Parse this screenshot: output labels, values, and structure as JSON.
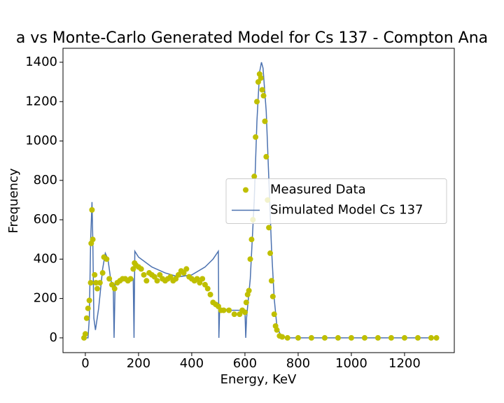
{
  "chart_data": {
    "type": "scatter-line",
    "title": "a vs Monte-Carlo Generated Model for Cs 137 - Compton Ana",
    "xlabel": "Energy, KeV",
    "ylabel": "Frequency",
    "xlim": [
      -84,
      1387
    ],
    "ylim": [
      -75,
      1471
    ],
    "xticks": [
      0,
      200,
      400,
      600,
      800,
      1000,
      1200
    ],
    "yticks": [
      0,
      200,
      400,
      600,
      800,
      1000,
      1200,
      1400
    ],
    "legend": "center right",
    "grid": false,
    "series": [
      {
        "name": "Measured Data",
        "kind": "scatter",
        "color": "#bfbf00",
        "x": [
          -5,
          0,
          5,
          10,
          15,
          20,
          22,
          25,
          28,
          35,
          40,
          45,
          55,
          65,
          70,
          80,
          90,
          100,
          110,
          120,
          130,
          140,
          150,
          160,
          170,
          180,
          185,
          190,
          200,
          210,
          220,
          230,
          240,
          250,
          260,
          270,
          280,
          290,
          300,
          310,
          320,
          330,
          340,
          350,
          360,
          370,
          380,
          390,
          400,
          410,
          420,
          430,
          440,
          450,
          460,
          470,
          480,
          490,
          500,
          510,
          520,
          540,
          560,
          580,
          590,
          600,
          605,
          610,
          615,
          620,
          625,
          630,
          635,
          640,
          645,
          650,
          655,
          660,
          665,
          670,
          675,
          680,
          685,
          690,
          695,
          700,
          705,
          710,
          715,
          720,
          730,
          740,
          760,
          800,
          850,
          900,
          950,
          1000,
          1050,
          1100,
          1150,
          1200,
          1250,
          1300,
          1320
        ],
        "values": [
          0,
          20,
          100,
          150,
          190,
          280,
          480,
          650,
          500,
          320,
          280,
          250,
          280,
          330,
          410,
          400,
          300,
          270,
          250,
          280,
          290,
          300,
          300,
          290,
          300,
          350,
          380,
          370,
          360,
          350,
          320,
          290,
          330,
          320,
          310,
          290,
          320,
          300,
          290,
          300,
          310,
          290,
          300,
          320,
          340,
          330,
          350,
          310,
          300,
          290,
          300,
          280,
          300,
          270,
          250,
          220,
          180,
          170,
          160,
          140,
          140,
          140,
          120,
          120,
          140,
          130,
          180,
          220,
          240,
          400,
          500,
          600,
          820,
          1020,
          1200,
          1300,
          1340,
          1320,
          1260,
          1230,
          1100,
          920,
          700,
          560,
          430,
          290,
          210,
          120,
          60,
          40,
          10,
          5,
          0,
          0,
          0,
          0,
          0,
          0,
          0,
          0,
          0,
          0,
          0,
          0,
          0
        ]
      },
      {
        "name": "Simulated Model Cs 137",
        "kind": "line",
        "color": "#4c72b0",
        "x": [
          -10,
          10,
          15,
          20,
          25,
          28,
          32,
          38,
          50,
          65,
          75,
          85,
          95,
          105,
          108,
          112,
          140,
          180,
          183,
          186,
          200,
          250,
          300,
          350,
          400,
          450,
          480,
          500,
          502,
          505,
          550,
          600,
          603,
          606,
          620,
          635,
          645,
          655,
          662,
          668,
          680,
          690,
          700,
          710,
          720,
          735,
          760,
          1320
        ],
        "values": [
          0,
          0,
          100,
          500,
          690,
          500,
          100,
          40,
          150,
          350,
          430,
          400,
          300,
          250,
          0,
          280,
          290,
          300,
          0,
          440,
          410,
          360,
          330,
          310,
          320,
          360,
          400,
          440,
          0,
          150,
          140,
          140,
          0,
          100,
          300,
          700,
          1100,
          1350,
          1400,
          1370,
          1150,
          800,
          450,
          200,
          60,
          10,
          0,
          0
        ]
      }
    ]
  }
}
